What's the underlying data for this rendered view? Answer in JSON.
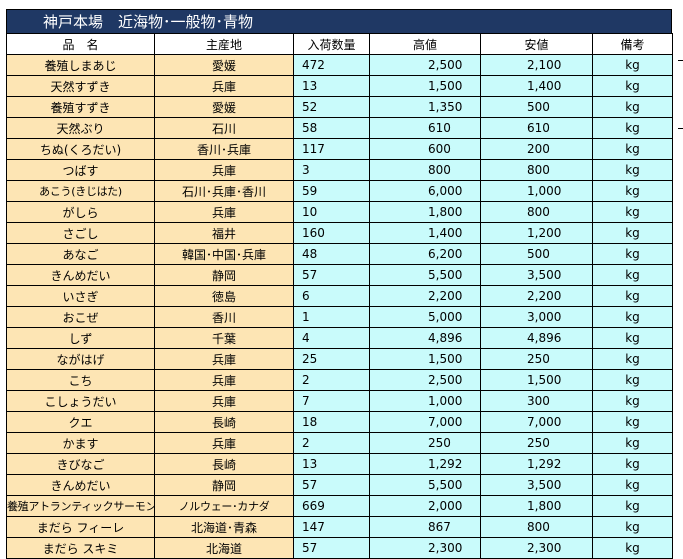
{
  "title": "神戸本場　近海物･一般物･青物",
  "headers": {
    "name": "品　名",
    "origin": "主産地",
    "qty": "入荷数量",
    "high": "高値",
    "low": "安値",
    "note": "備考"
  },
  "rows": [
    {
      "name": "養殖しまあじ",
      "origin": "愛媛",
      "qty": "472",
      "high": "2,500",
      "low": "2,100",
      "unit": "kg"
    },
    {
      "name": "天然すずき",
      "origin": "兵庫",
      "qty": "13",
      "high": "1,500",
      "low": "1,400",
      "unit": "kg"
    },
    {
      "name": "養殖すずき",
      "origin": "愛媛",
      "qty": "52",
      "high": "1,350",
      "low": "500",
      "unit": "kg"
    },
    {
      "name": "天然ぶり",
      "origin": "石川",
      "qty": "58",
      "high": "610",
      "low": "610",
      "unit": "kg"
    },
    {
      "name": "ちぬ(くろだい)",
      "origin": "香川･兵庫",
      "qty": "117",
      "high": "600",
      "low": "200",
      "unit": "kg"
    },
    {
      "name": "つばす",
      "origin": "兵庫",
      "qty": "3",
      "high": "800",
      "low": "800",
      "unit": "kg"
    },
    {
      "name": "あこう(きじはた)",
      "origin": "石川･兵庫･香川",
      "qty": "59",
      "high": "6,000",
      "low": "1,000",
      "unit": "kg"
    },
    {
      "name": "がしら",
      "origin": "兵庫",
      "qty": "10",
      "high": "1,800",
      "low": "800",
      "unit": "kg"
    },
    {
      "name": "さごし",
      "origin": "福井",
      "qty": "160",
      "high": "1,400",
      "low": "1,200",
      "unit": "kg"
    },
    {
      "name": "あなご",
      "origin": "韓国･中国･兵庫",
      "qty": "48",
      "high": "6,200",
      "low": "500",
      "unit": "kg"
    },
    {
      "name": "きんめだい",
      "origin": "静岡",
      "qty": "57",
      "high": "5,500",
      "low": "3,500",
      "unit": "kg"
    },
    {
      "name": "いさぎ",
      "origin": "徳島",
      "qty": "6",
      "high": "2,200",
      "low": "2,200",
      "unit": "kg"
    },
    {
      "name": "おこぜ",
      "origin": "香川",
      "qty": "1",
      "high": "5,000",
      "low": "3,000",
      "unit": "kg"
    },
    {
      "name": "しず",
      "origin": "千葉",
      "qty": "4",
      "high": "4,896",
      "low": "4,896",
      "unit": "kg"
    },
    {
      "name": "ながはげ",
      "origin": "兵庫",
      "qty": "25",
      "high": "1,500",
      "low": "250",
      "unit": "kg"
    },
    {
      "name": "こち",
      "origin": "兵庫",
      "qty": "2",
      "high": "2,500",
      "low": "1,500",
      "unit": "kg"
    },
    {
      "name": "こしょうだい",
      "origin": "兵庫",
      "qty": "7",
      "high": "1,000",
      "low": "300",
      "unit": "kg"
    },
    {
      "name": "クエ",
      "origin": "長崎",
      "qty": "18",
      "high": "7,000",
      "low": "7,000",
      "unit": "kg"
    },
    {
      "name": "かます",
      "origin": "兵庫",
      "qty": "2",
      "high": "250",
      "low": "250",
      "unit": "kg"
    },
    {
      "name": "きびなご",
      "origin": "長崎",
      "qty": "13",
      "high": "1,292",
      "low": "1,292",
      "unit": "kg"
    },
    {
      "name": "きんめだい",
      "origin": "静岡",
      "qty": "57",
      "high": "5,500",
      "low": "3,500",
      "unit": "kg"
    },
    {
      "name": "養殖アトランティックサーモン",
      "origin": "ノルウェー･カナダ",
      "qty": "669",
      "high": "2,000",
      "low": "1,800",
      "unit": "kg"
    },
    {
      "name": "まだら フィーレ",
      "origin": "北海道･青森",
      "qty": "147",
      "high": "867",
      "low": "800",
      "unit": "kg"
    },
    {
      "name": "まだら スキミ",
      "origin": "北海道",
      "qty": "57",
      "high": "2,300",
      "low": "2,300",
      "unit": "kg"
    }
  ]
}
